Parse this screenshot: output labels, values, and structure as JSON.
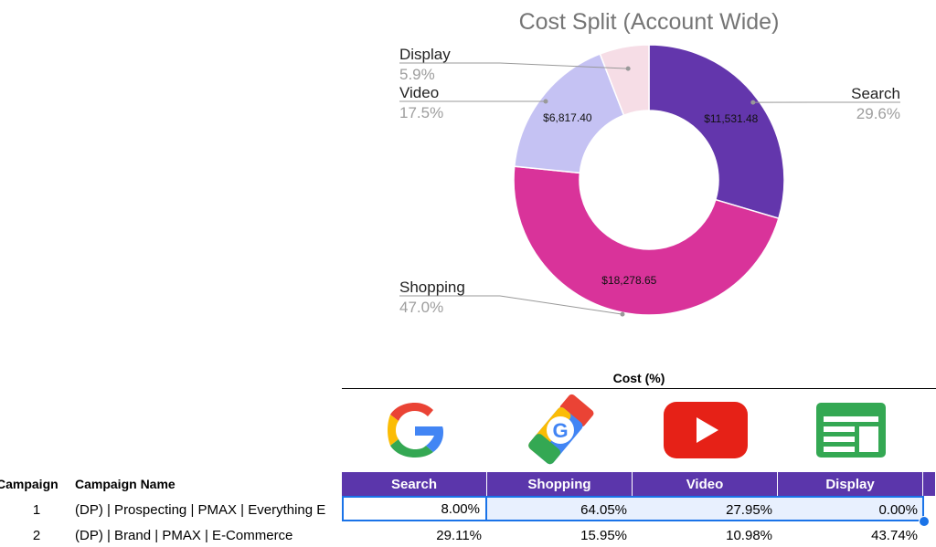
{
  "chart_data": {
    "type": "pie",
    "donut": true,
    "title": "Cost Split (Account Wide)",
    "slices": [
      {
        "name": "Search",
        "value": 11531.48,
        "value_label": "$11,531.48",
        "percent": 29.6,
        "percent_label": "29.6%",
        "color": "#6336ac"
      },
      {
        "name": "Shopping",
        "value": 18278.65,
        "value_label": "$18,278.65",
        "percent": 47.0,
        "percent_label": "47.0%",
        "color": "#d9339a"
      },
      {
        "name": "Video",
        "value": 6817.4,
        "value_label": "$6,817.40",
        "percent": 17.5,
        "percent_label": "17.5%",
        "color": "#c5c2f3"
      },
      {
        "name": "Display",
        "value": 2295.0,
        "value_label": "",
        "percent": 5.9,
        "percent_label": "5.9%",
        "color": "#f6dde6"
      }
    ],
    "legend_placement": "outside with leader lines"
  },
  "sheet": {
    "cost_header": "Cost (%)",
    "icons": [
      "google-search-icon",
      "google-shopping-icon",
      "youtube-icon",
      "google-display-icon"
    ],
    "row_headers": {
      "campaign": "Campaign",
      "campaign_name": "Campaign Name"
    },
    "columns": [
      "Search",
      "Shopping",
      "Video",
      "Display"
    ],
    "header_color": "#5b36ab",
    "rows": [
      {
        "campaign": "1",
        "name": "(DP) | Prospecting | PMAX | Everything E",
        "search": "8.00%",
        "shopping": "64.05%",
        "video": "27.95%",
        "display": "0.00%"
      },
      {
        "campaign": "2",
        "name": "(DP) | Brand | PMAX | E-Commerce",
        "search": "29.11%",
        "shopping": "15.95%",
        "video": "10.98%",
        "display": "43.74%"
      }
    ]
  }
}
